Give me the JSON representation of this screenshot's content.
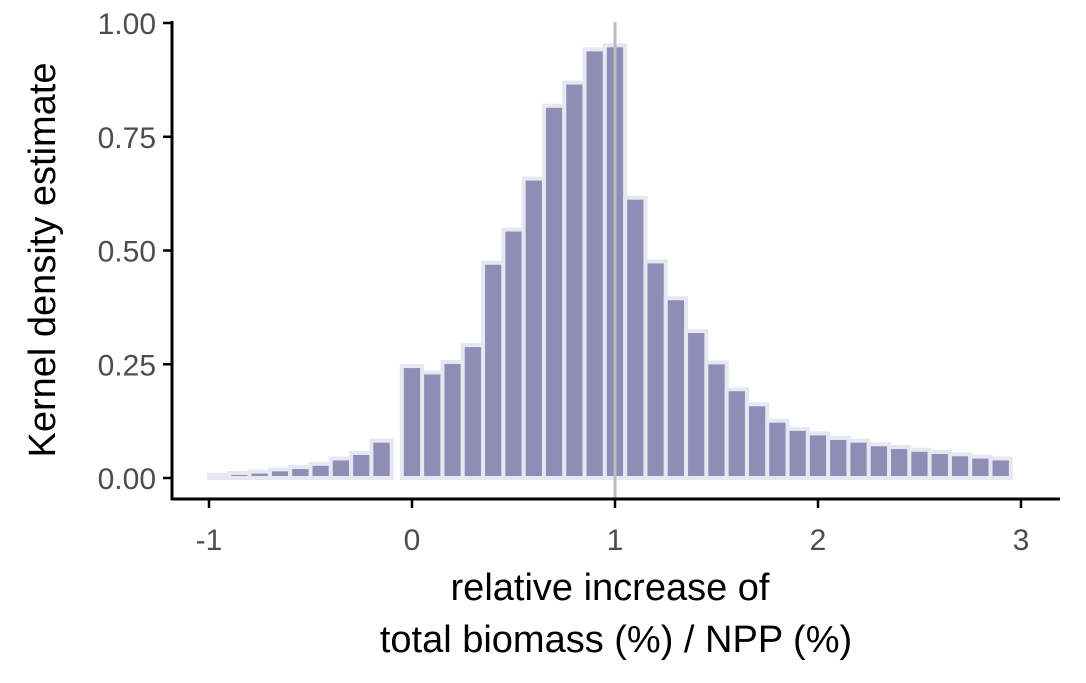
{
  "chart_data": {
    "type": "bar",
    "title": "",
    "xlabel_lines": [
      "relative increase of",
      "total biomass (%) / NPP (%)"
    ],
    "ylabel": "Kernel density estimate",
    "xlim": [
      -1.2,
      3.2
    ],
    "ylim": [
      0,
      1.0
    ],
    "x_ticks": [
      -1,
      0,
      1,
      2,
      3
    ],
    "x_tick_labels": [
      "-1",
      "0",
      "1",
      "2",
      "3"
    ],
    "y_ticks": [
      0,
      0.25,
      0.5,
      0.75,
      1.0
    ],
    "y_tick_labels": [
      "0.00",
      "0.25",
      "0.50",
      "0.75",
      "1.00"
    ],
    "reference_line_x": 1,
    "grid": false,
    "bar_width": 0.1,
    "x": [
      -0.95,
      -0.85,
      -0.75,
      -0.65,
      -0.55,
      -0.45,
      -0.35,
      -0.25,
      -0.15,
      0.0,
      0.1,
      0.2,
      0.3,
      0.4,
      0.5,
      0.6,
      0.7,
      0.8,
      0.9,
      1.0,
      1.1,
      1.2,
      1.3,
      1.4,
      1.5,
      1.6,
      1.7,
      1.8,
      1.9,
      2.0,
      2.1,
      2.2,
      2.3,
      2.4,
      2.5,
      2.6,
      2.7,
      2.8,
      2.9
    ],
    "values": [
      0.007,
      0.011,
      0.014,
      0.019,
      0.024,
      0.031,
      0.043,
      0.055,
      0.082,
      0.246,
      0.232,
      0.255,
      0.292,
      0.473,
      0.546,
      0.658,
      0.818,
      0.869,
      0.942,
      0.951,
      0.616,
      0.476,
      0.395,
      0.323,
      0.254,
      0.195,
      0.162,
      0.126,
      0.108,
      0.098,
      0.088,
      0.082,
      0.074,
      0.068,
      0.062,
      0.057,
      0.052,
      0.047,
      0.043
    ],
    "colors": {
      "bar_fill": "#8d8db5",
      "bar_outline": "#e5e7f1",
      "reference_line": "#bebebe",
      "axis": "#000000",
      "tick_label": "#4d4d4d"
    }
  }
}
